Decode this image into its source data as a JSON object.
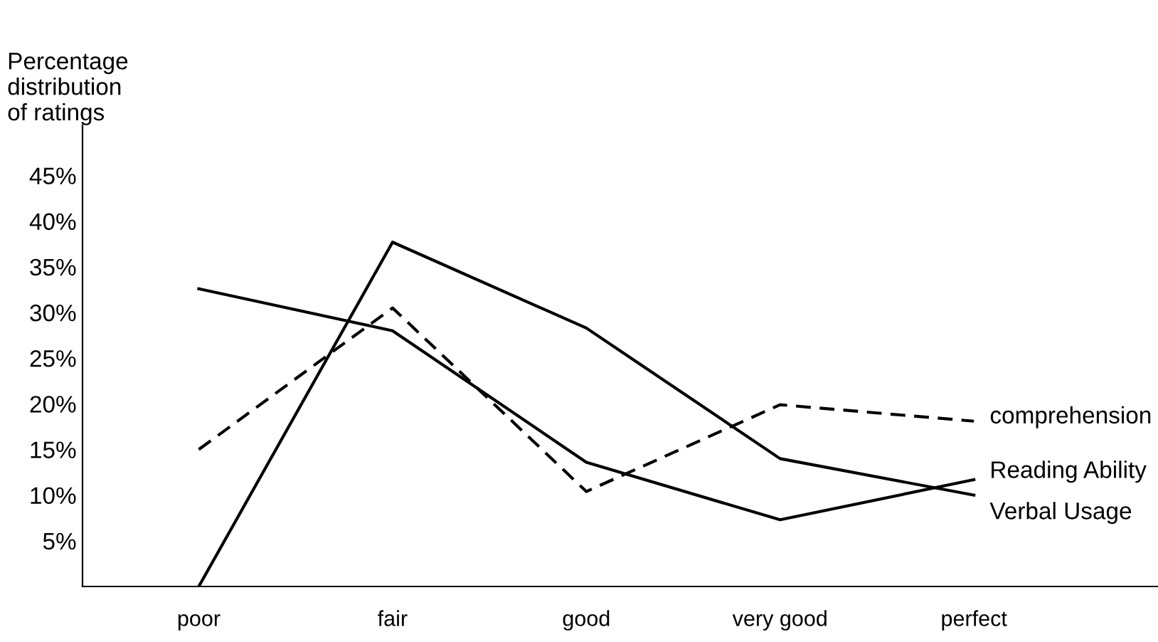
{
  "chart_data": {
    "type": "line",
    "ylabel": "Percentage\ndistribution\nof ratings",
    "categories": [
      "poor",
      "fair",
      "good",
      "very good",
      "perfect"
    ],
    "ylim": [
      0,
      50.5
    ],
    "yticks": [
      {
        "value": 5,
        "label": "5%"
      },
      {
        "value": 10,
        "label": "10%"
      },
      {
        "value": 15,
        "label": "15%"
      },
      {
        "value": 20,
        "label": "20%"
      },
      {
        "value": 25,
        "label": "25%"
      },
      {
        "value": 30,
        "label": "30%"
      },
      {
        "value": 35,
        "label": "35%"
      },
      {
        "value": 40,
        "label": "40%"
      },
      {
        "value": 45,
        "label": "45%"
      }
    ],
    "grid": false,
    "legend": false,
    "marker": "none",
    "series": [
      {
        "name": "comprehension",
        "color": "#000000",
        "line_style": "dashed",
        "values": [
          15.0,
          30.5,
          10.4,
          19.9,
          18.1
        ]
      },
      {
        "name": "Reading Ability",
        "color": "#000000",
        "line_style": "solid",
        "values": [
          32.6,
          28.0,
          13.6,
          7.3,
          11.7
        ]
      },
      {
        "name": "Verbal Usage",
        "color": "#000000",
        "line_style": "solid",
        "values": [
          0,
          37.7,
          28.3,
          14.0,
          10.0
        ]
      }
    ]
  }
}
